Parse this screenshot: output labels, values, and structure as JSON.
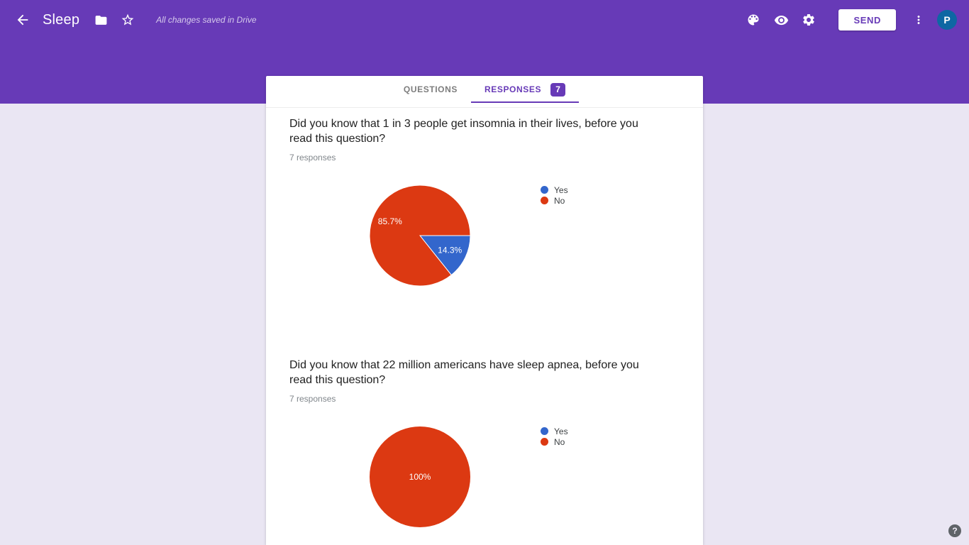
{
  "theme": {
    "primary": "#673ab7",
    "page_bg": "#eae6f3",
    "avatar_bg": "#0e67a3",
    "pie_blue": "#3366cc",
    "pie_red": "#dc3912"
  },
  "header": {
    "title": "Sleep",
    "saved_status": "All changes saved in Drive",
    "send_label": "SEND",
    "avatar_letter": "P"
  },
  "tabs": {
    "questions_label": "QUESTIONS",
    "responses_label": "RESPONSES",
    "responses_count": "7"
  },
  "questions": [
    {
      "title": "Did you know that 1 in 3 people get insomnia in their lives, before you read this question?",
      "responses_label": "7 responses"
    },
    {
      "title": "Did you know that 22 million americans have sleep apnea, before you read this question?",
      "responses_label": "7 responses"
    }
  ],
  "chart_data": [
    {
      "type": "pie",
      "title": "Did you know that 1 in 3 people get insomnia in their lives, before you read this question?",
      "labels": [
        "Yes",
        "No"
      ],
      "colors": [
        "#3366cc",
        "#dc3912"
      ],
      "values": [
        1,
        6
      ],
      "percent_labels": [
        "14.3%",
        "85.7%"
      ],
      "total_responses": 7,
      "legend_position": "right"
    },
    {
      "type": "pie",
      "title": "Did you know that 22 million americans have sleep apnea, before you read this question?",
      "labels": [
        "Yes",
        "No"
      ],
      "colors": [
        "#3366cc",
        "#dc3912"
      ],
      "values": [
        0,
        7
      ],
      "percent_labels": [
        "",
        "100%"
      ],
      "total_responses": 7,
      "legend_position": "right"
    }
  ],
  "help": {
    "label": "?"
  }
}
